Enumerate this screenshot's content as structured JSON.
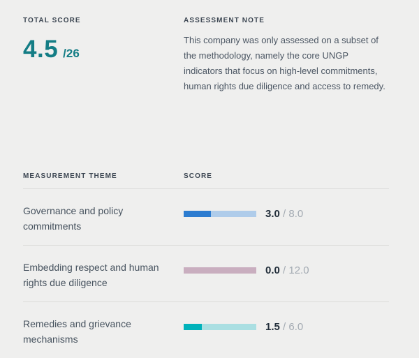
{
  "palette": {
    "background": "#efefee",
    "heading_text": "#3c4652",
    "body_text": "#4b5663",
    "theme_text": "#46525e",
    "score_value_text": "#232f3b",
    "muted_text": "#a3aab2",
    "divider": "#dcdcda",
    "teal": "#147d85"
  },
  "total_score": {
    "label": "TOTAL SCORE",
    "value": "4.5",
    "max_display": "/26"
  },
  "assessment_note": {
    "label": "ASSESSMENT NOTE",
    "text": "This company was only assessed on a subset of the methodology, namely the core UNGP indicators that focus on high-level commitments, human rights due diligence and access to remedy."
  },
  "table": {
    "headers": {
      "theme": "MEASUREMENT THEME",
      "score": "SCORE"
    },
    "separator": " / ",
    "rows": [
      {
        "theme": "Governance and policy commitments",
        "score": "3.0",
        "max": "8.0",
        "percent": 37.5,
        "fill_color": "#2c7cd0",
        "track_color": "#afccea"
      },
      {
        "theme": "Embedding respect and human rights due diligence",
        "score": "0.0",
        "max": "12.0",
        "percent": 0,
        "fill_color": null,
        "track_color": "#c9aebf"
      },
      {
        "theme": "Remedies and grievance mechanisms",
        "score": "1.5",
        "max": "6.0",
        "percent": 25,
        "fill_color": "#00b2ba",
        "track_color": "#aadfe2"
      }
    ]
  },
  "chart_data": {
    "type": "bar",
    "title": "Measurement theme scores",
    "categories": [
      "Governance and policy commitments",
      "Embedding respect and human rights due diligence",
      "Remedies and grievance mechanisms"
    ],
    "series": [
      {
        "name": "score",
        "values": [
          3.0,
          0.0,
          1.5
        ]
      },
      {
        "name": "max",
        "values": [
          8.0,
          12.0,
          6.0
        ]
      }
    ],
    "total_score": 4.5,
    "total_max": 26,
    "legend_position": "none",
    "grid": false
  }
}
